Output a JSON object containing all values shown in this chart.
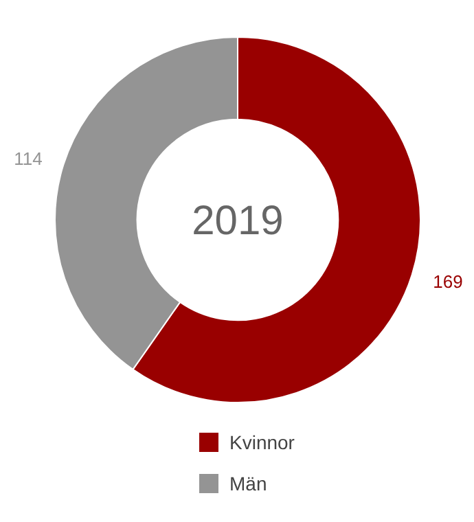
{
  "chart_data": {
    "type": "donut",
    "title": "2019",
    "categories": [
      "Kvinnor",
      "Män"
    ],
    "values": [
      169,
      114
    ],
    "colors": [
      "#990000",
      "#949494"
    ],
    "data_labels": true,
    "legend": "bottom"
  }
}
